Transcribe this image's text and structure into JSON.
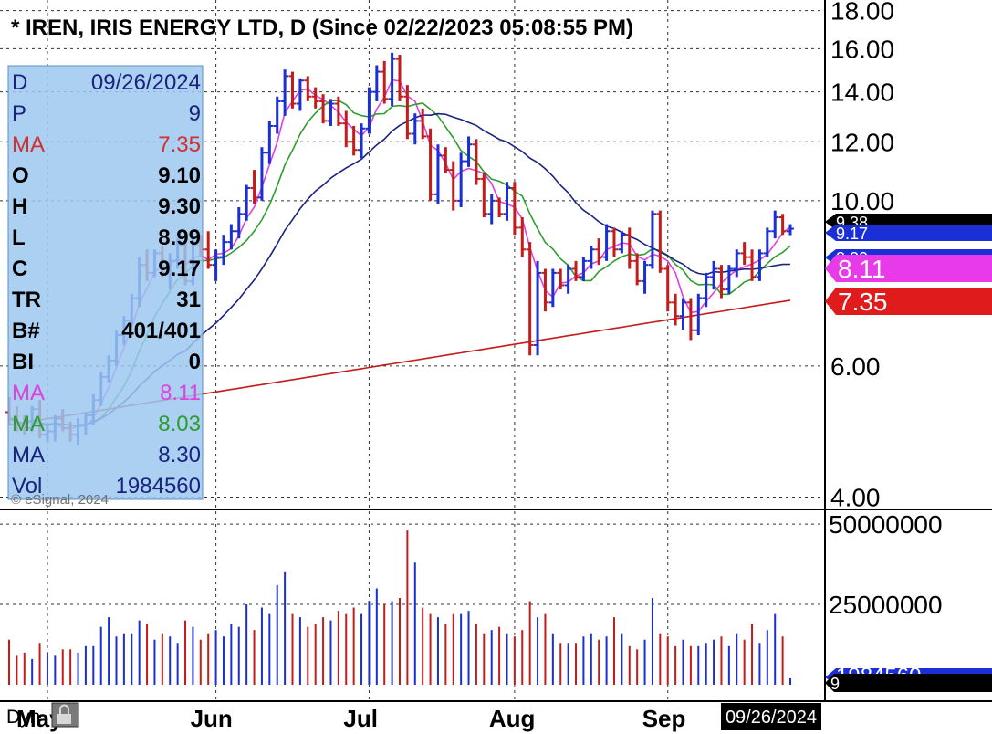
{
  "title": "* IREN, IRIS ENERGY LTD, D (Since 02/22/2023 05:08:55 PM)",
  "info_panel": [
    {
      "key": "D",
      "value": "09/26/2024",
      "key_color": "#1a237e",
      "value_color": "#1a237e",
      "bold": false
    },
    {
      "key": "P",
      "value": "9",
      "key_color": "#1a237e",
      "value_color": "#1a237e",
      "bold": false
    },
    {
      "key": "MA",
      "value": "7.35",
      "key_color": "#d32f2f",
      "value_color": "#d32f2f",
      "bold": false
    },
    {
      "key": "O",
      "value": "9.10",
      "key_color": "#000000",
      "value_color": "#000000",
      "bold": true
    },
    {
      "key": "H",
      "value": "9.30",
      "key_color": "#000000",
      "value_color": "#000000",
      "bold": true
    },
    {
      "key": "L",
      "value": "8.99",
      "key_color": "#000000",
      "value_color": "#000000",
      "bold": true
    },
    {
      "key": "C",
      "value": "9.17",
      "key_color": "#000000",
      "value_color": "#000000",
      "bold": true
    },
    {
      "key": "TR",
      "value": "31",
      "key_color": "#000000",
      "value_color": "#000000",
      "bold": true
    },
    {
      "key": "B#",
      "value": "401/401",
      "key_color": "#000000",
      "value_color": "#000000",
      "bold": true
    },
    {
      "key": "BI",
      "value": "0",
      "key_color": "#000000",
      "value_color": "#000000",
      "bold": true
    },
    {
      "key": "MA",
      "value": "8.11",
      "key_color": "#e040e0",
      "value_color": "#e040e0",
      "bold": false
    },
    {
      "key": "MA",
      "value": "8.03",
      "key_color": "#2e9d2e",
      "value_color": "#2e9d2e",
      "bold": false
    },
    {
      "key": "MA",
      "value": "8.30",
      "key_color": "#1a237e",
      "value_color": "#1a237e",
      "bold": false
    },
    {
      "key": "Vol",
      "value": "1984560",
      "key_color": "#1a237e",
      "value_color": "#1a237e",
      "bold": false
    }
  ],
  "watermark": "© eSignal, 2024",
  "footer": {
    "dyn_label": "Dyn",
    "lock_icon": "lock-icon",
    "date_box": "09/26/2024"
  },
  "price_axis": {
    "ticks": [
      "18.00",
      "16.00",
      "14.00",
      "12.00",
      "10.00",
      "6.00",
      "4.00"
    ],
    "tick_values": [
      18,
      16,
      14,
      12,
      10,
      6,
      4
    ],
    "scale": "log",
    "range": [
      3.85,
      18.6
    ]
  },
  "volume_axis": {
    "ticks": [
      "50000000",
      "25000000"
    ],
    "tick_values": [
      50000000,
      25000000
    ]
  },
  "price_tags": [
    {
      "label": "9.38",
      "value": 9.38,
      "bg": "#000000",
      "fg": "#ffffff"
    },
    {
      "label": "9.17",
      "value": 9.17,
      "bg": "#1a2fd6",
      "fg": "#ffffff"
    },
    {
      "label": "8.30",
      "value": 8.3,
      "bg": "#1a2fd6",
      "fg": "#ffffff"
    },
    {
      "label": "8.11",
      "value": 8.11,
      "bg": "#e83ae8",
      "fg": "#ffffff"
    },
    {
      "label": "7.35",
      "value": 7.35,
      "bg": "#e01b1b",
      "fg": "#ffffff"
    }
  ],
  "volume_tags": [
    {
      "label": "1984560",
      "value": 1984560,
      "bg": "#1a2fd6",
      "fg": "#ffffff"
    },
    {
      "label": "9",
      "value": 0,
      "bg": "#000000",
      "fg": "#ffffff"
    }
  ],
  "colors": {
    "up_bar": "#1a2fd6",
    "down_bar": "#c41b1b",
    "ma_red": "#c41b1b",
    "ma_magenta": "#e040e0",
    "ma_green": "#2e9d2e",
    "ma_blue": "#1a237e",
    "panel_bg": "#9cc8f0"
  },
  "chart_data": {
    "type": "candlestick",
    "symbol": "IREN",
    "title": "* IREN, IRIS ENERGY LTD, D (Since 02/22/2023 05:08:55 PM)",
    "x_labels": [
      "May",
      "Jun",
      "Jul",
      "Aug",
      "Sep"
    ],
    "x_label_index": [
      5,
      27,
      47,
      66,
      86
    ],
    "last_date": "09/26/2024",
    "bars": [
      [
        5.2,
        5.45,
        5.0,
        5.1
      ],
      [
        5.1,
        5.3,
        4.9,
        5.0
      ],
      [
        5.0,
        5.15,
        4.85,
        4.95
      ],
      [
        4.95,
        5.3,
        4.9,
        5.25
      ],
      [
        5.25,
        5.4,
        4.8,
        4.85
      ],
      [
        4.85,
        5.0,
        4.75,
        4.9
      ],
      [
        4.9,
        5.15,
        4.75,
        5.1
      ],
      [
        5.1,
        5.25,
        4.9,
        4.95
      ],
      [
        4.95,
        5.05,
        4.75,
        4.85
      ],
      [
        4.85,
        5.1,
        4.7,
        5.0
      ],
      [
        5.0,
        5.2,
        4.85,
        5.15
      ],
      [
        5.15,
        5.5,
        5.0,
        5.4
      ],
      [
        5.4,
        5.9,
        5.3,
        5.8
      ],
      [
        5.8,
        6.2,
        5.7,
        6.1
      ],
      [
        6.1,
        6.7,
        6.0,
        6.6
      ],
      [
        6.6,
        7.0,
        6.4,
        6.9
      ],
      [
        6.9,
        7.5,
        6.8,
        7.4
      ],
      [
        7.4,
        8.4,
        7.2,
        8.2
      ],
      [
        8.2,
        8.6,
        7.8,
        8.0
      ],
      [
        8.0,
        8.6,
        7.9,
        8.5
      ],
      [
        8.5,
        8.7,
        7.9,
        8.0
      ],
      [
        8.0,
        8.5,
        7.6,
        8.3
      ],
      [
        8.3,
        8.9,
        8.1,
        8.7
      ],
      [
        8.7,
        8.8,
        7.7,
        7.8
      ],
      [
        7.8,
        8.9,
        7.7,
        8.7
      ],
      [
        8.7,
        9.0,
        8.4,
        8.6
      ],
      [
        8.6,
        9.1,
        8.1,
        8.2
      ],
      [
        8.2,
        8.6,
        7.8,
        8.4
      ],
      [
        8.4,
        9.0,
        8.2,
        8.8
      ],
      [
        8.8,
        9.3,
        8.6,
        9.1
      ],
      [
        9.1,
        9.8,
        8.9,
        9.6
      ],
      [
        9.6,
        10.5,
        9.4,
        10.4
      ],
      [
        10.4,
        11.0,
        9.9,
        10.1
      ],
      [
        10.1,
        11.8,
        10.0,
        11.6
      ],
      [
        11.6,
        12.8,
        11.2,
        12.6
      ],
      [
        12.6,
        13.8,
        12.3,
        13.6
      ],
      [
        13.6,
        15.0,
        13.0,
        14.7
      ],
      [
        14.7,
        14.9,
        13.3,
        13.5
      ],
      [
        13.5,
        14.6,
        13.2,
        14.5
      ],
      [
        14.5,
        14.7,
        13.6,
        13.8
      ],
      [
        13.8,
        14.2,
        13.3,
        13.6
      ],
      [
        13.6,
        13.9,
        12.7,
        12.8
      ],
      [
        12.8,
        13.7,
        12.6,
        13.5
      ],
      [
        13.5,
        13.8,
        12.6,
        12.7
      ],
      [
        12.7,
        13.2,
        11.8,
        12.0
      ],
      [
        12.0,
        12.6,
        11.5,
        11.7
      ],
      [
        11.7,
        12.7,
        11.4,
        12.5
      ],
      [
        12.5,
        14.2,
        12.3,
        14.0
      ],
      [
        14.0,
        15.2,
        13.6,
        14.9
      ],
      [
        14.9,
        15.4,
        13.5,
        13.7
      ],
      [
        13.7,
        15.8,
        13.4,
        15.5
      ],
      [
        15.5,
        15.7,
        13.6,
        13.8
      ],
      [
        13.8,
        14.3,
        12.1,
        12.3
      ],
      [
        12.3,
        13.1,
        11.9,
        12.8
      ],
      [
        12.8,
        13.3,
        12.1,
        12.2
      ],
      [
        12.2,
        12.5,
        10.0,
        10.2
      ],
      [
        10.2,
        11.9,
        9.9,
        11.5
      ],
      [
        11.5,
        11.8,
        10.9,
        11.0
      ],
      [
        11.0,
        11.3,
        9.7,
        10.0
      ],
      [
        10.0,
        11.6,
        9.8,
        11.3
      ],
      [
        11.3,
        12.2,
        11.1,
        11.9
      ],
      [
        11.9,
        12.1,
        10.5,
        10.7
      ],
      [
        10.7,
        10.9,
        9.5,
        9.6
      ],
      [
        9.6,
        10.2,
        9.3,
        10.0
      ],
      [
        10.0,
        10.1,
        9.5,
        9.6
      ],
      [
        9.6,
        10.6,
        9.4,
        10.4
      ],
      [
        10.4,
        10.6,
        9.0,
        9.2
      ],
      [
        9.2,
        9.5,
        8.4,
        8.6
      ],
      [
        8.6,
        8.8,
        6.2,
        6.4
      ],
      [
        6.4,
        8.3,
        6.2,
        8.0
      ],
      [
        8.0,
        8.1,
        7.1,
        7.3
      ],
      [
        7.3,
        8.1,
        7.2,
        8.0
      ],
      [
        8.0,
        8.1,
        7.6,
        7.7
      ],
      [
        7.7,
        8.2,
        7.5,
        8.1
      ],
      [
        8.1,
        8.3,
        7.8,
        7.9
      ],
      [
        7.9,
        8.4,
        7.8,
        8.3
      ],
      [
        8.3,
        8.7,
        8.1,
        8.6
      ],
      [
        8.6,
        8.9,
        8.2,
        8.4
      ],
      [
        8.4,
        9.3,
        8.3,
        9.1
      ],
      [
        9.1,
        9.2,
        8.4,
        8.6
      ],
      [
        8.6,
        9.1,
        8.5,
        9.0
      ],
      [
        9.0,
        9.2,
        8.1,
        8.3
      ],
      [
        8.3,
        8.5,
        7.7,
        7.8
      ],
      [
        7.8,
        8.3,
        7.5,
        8.2
      ],
      [
        8.2,
        9.7,
        8.1,
        9.6
      ],
      [
        9.6,
        9.7,
        8.0,
        8.1
      ],
      [
        8.1,
        8.2,
        7.1,
        7.3
      ],
      [
        7.3,
        7.5,
        6.8,
        7.0
      ],
      [
        7.0,
        7.4,
        6.7,
        7.3
      ],
      [
        7.3,
        7.4,
        6.5,
        6.7
      ],
      [
        6.7,
        7.5,
        6.6,
        7.4
      ],
      [
        7.4,
        8.0,
        7.2,
        7.9
      ],
      [
        7.9,
        8.3,
        7.6,
        8.1
      ],
      [
        8.1,
        8.2,
        7.4,
        7.6
      ],
      [
        7.6,
        8.2,
        7.5,
        8.1
      ],
      [
        8.1,
        8.6,
        7.9,
        8.5
      ],
      [
        8.5,
        8.8,
        8.2,
        8.4
      ],
      [
        8.4,
        8.6,
        7.8,
        7.9
      ],
      [
        7.9,
        8.6,
        7.8,
        8.5
      ],
      [
        8.5,
        9.2,
        8.4,
        9.1
      ],
      [
        9.1,
        9.7,
        8.9,
        9.5
      ],
      [
        9.5,
        9.6,
        9.0,
        9.1
      ],
      [
        9.1,
        9.3,
        8.99,
        9.17
      ]
    ],
    "volume": [
      14,
      9,
      10,
      8,
      13,
      10,
      9,
      11,
      11,
      10,
      12,
      12,
      18,
      21,
      15,
      16,
      16,
      20,
      19,
      14,
      16,
      15,
      13,
      20,
      18,
      14,
      16,
      17,
      15,
      19,
      18,
      25,
      17,
      24,
      22,
      31,
      35,
      22,
      21,
      18,
      19,
      21,
      20,
      23,
      22,
      24,
      22,
      26,
      30,
      25,
      26,
      27,
      48,
      38,
      24,
      22,
      21,
      19,
      22,
      22,
      23,
      19,
      16,
      17,
      18,
      16,
      15,
      17,
      26,
      21,
      22,
      16,
      13,
      13,
      13,
      15,
      16,
      14,
      15,
      21,
      16,
      12,
      11,
      14,
      27,
      16,
      15,
      12,
      14,
      12,
      12,
      13,
      14,
      15,
      12,
      16,
      14,
      19,
      13,
      17,
      22,
      15,
      2
    ],
    "volume_unit": "millions",
    "ma_red_endpoints": [
      [
        0,
        5.0
      ],
      [
        105,
        7.35
      ]
    ],
    "ma_magenta_last": 8.11,
    "ma_green_last": 8.03,
    "ma_blue_last": 8.3
  }
}
